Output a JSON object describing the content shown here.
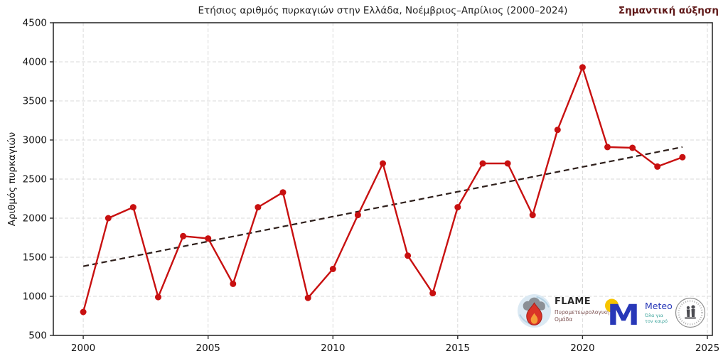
{
  "figure": {
    "title": "Ετήσιος αριθμός πυρκαγιών στην Ελλάδα, Νοέμβριος–Απρίλιος (2000–2024)",
    "annotation": "Σημαντική αύξηση"
  },
  "colors": {
    "series_red": "#c81010",
    "trend_dark": "#2e1f1b",
    "annotation_red": "#5e1717",
    "grid_gray": "#dadada",
    "axis_dark": "#2e2e2e",
    "tick_text": "#141414"
  },
  "chart_data": {
    "type": "line",
    "title": "Ετήσιος αριθμός πυρκαγιών στην Ελλάδα, Νοέμβριος–Απρίλιος (2000–2024)",
    "xlabel": "",
    "ylabel": "Αριθμός πυρκαγιών",
    "grid": true,
    "legend": false,
    "xlim": [
      1998.8,
      2025.2
    ],
    "ylim": [
      500,
      4500
    ],
    "xticks": [
      2000,
      2005,
      2010,
      2015,
      2020,
      2025
    ],
    "yticks": [
      500,
      1000,
      1500,
      2000,
      2500,
      3000,
      3500,
      4000,
      4500
    ],
    "x": [
      2000,
      2001,
      2002,
      2003,
      2004,
      2005,
      2006,
      2007,
      2008,
      2009,
      2010,
      2011,
      2012,
      2013,
      2014,
      2015,
      2016,
      2017,
      2018,
      2019,
      2020,
      2021,
      2022,
      2023,
      2024
    ],
    "series": [
      {
        "name": "annual_fires",
        "type": "line_markers",
        "color": "#c81010",
        "values": [
          800,
          2000,
          2140,
          990,
          1770,
          1740,
          1160,
          2140,
          2330,
          980,
          1350,
          2040,
          2700,
          1520,
          1040,
          2140,
          2700,
          2700,
          2040,
          3130,
          3930,
          2910,
          2900,
          2660,
          2780
        ]
      },
      {
        "name": "linear_trend",
        "type": "dashed_line",
        "color": "#2e1f1b",
        "x": [
          2000,
          2024
        ],
        "values": [
          1385,
          2910
        ]
      }
    ],
    "annotation": {
      "text": "Σημαντική αύξηση",
      "position": "top-right"
    }
  },
  "logos": {
    "flame": {
      "title": "FLAME",
      "subtitle": [
        "Πυρομετεωρολογική",
        "Ομάδα"
      ]
    },
    "meteo": {
      "title": "Meteo",
      "tagline": [
        "Όλα για",
        "τον καιρό"
      ]
    }
  }
}
